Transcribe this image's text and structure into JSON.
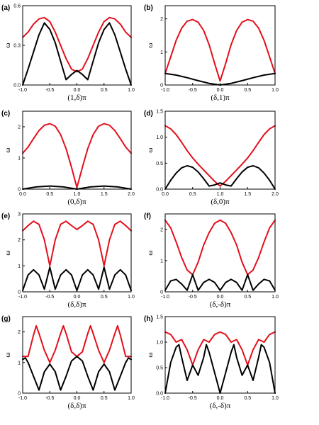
{
  "colors": {
    "upper": "#e3101b",
    "lower": "#000000",
    "axis": "#000000"
  },
  "chart_data": [
    {
      "panel": "(a)",
      "type": "line",
      "xlabel": "(1,δ)π",
      "ylabel": "ω",
      "xlim": [
        -1.0,
        1.0
      ],
      "ylim": [
        0.0,
        0.6
      ],
      "xticks": [
        "-1.0",
        "-0.5",
        "0.0",
        "0.5",
        "1.0"
      ],
      "xtick_values": [
        -1.0,
        -0.5,
        0.0,
        0.5,
        1.0
      ],
      "yticks": [
        "0.0",
        "0.3",
        "0.6"
      ],
      "ytick_values": [
        0.0,
        0.3,
        0.6
      ],
      "series": [
        {
          "color": "#e3101b",
          "x": [
            -1.0,
            -0.9,
            -0.8,
            -0.7,
            -0.6,
            -0.5,
            -0.4,
            -0.3,
            -0.2,
            -0.1,
            0.0,
            0.1,
            0.2,
            0.3,
            0.4,
            0.5,
            0.6,
            0.7,
            0.8,
            0.9,
            1.0
          ],
          "y": [
            0.36,
            0.4,
            0.46,
            0.5,
            0.51,
            0.48,
            0.4,
            0.3,
            0.2,
            0.12,
            0.1,
            0.12,
            0.2,
            0.3,
            0.4,
            0.48,
            0.51,
            0.5,
            0.46,
            0.4,
            0.36
          ]
        },
        {
          "color": "#000000",
          "x": [
            -1.0,
            -0.9,
            -0.8,
            -0.7,
            -0.6,
            -0.5,
            -0.4,
            -0.3,
            -0.2,
            -0.1,
            0.0,
            0.1,
            0.2,
            0.3,
            0.4,
            0.5,
            0.6,
            0.7,
            0.8,
            0.9,
            1.0
          ],
          "y": [
            0.0,
            0.12,
            0.25,
            0.38,
            0.47,
            0.42,
            0.32,
            0.18,
            0.04,
            0.08,
            0.11,
            0.08,
            0.04,
            0.18,
            0.32,
            0.42,
            0.47,
            0.38,
            0.25,
            0.12,
            0.0
          ]
        }
      ]
    },
    {
      "panel": "(b)",
      "type": "line",
      "xlabel": "(δ,1)π",
      "ylabel": "ω",
      "xlim": [
        -1.0,
        1.0
      ],
      "ylim": [
        0,
        2.4
      ],
      "xticks": [
        "-1.0",
        "-0.5",
        "0.0",
        "0.5",
        "1.0"
      ],
      "xtick_values": [
        -1.0,
        -0.5,
        0.0,
        0.5,
        1.0
      ],
      "yticks": [
        "0",
        "1",
        "2"
      ],
      "ytick_values": [
        0,
        1,
        2
      ],
      "series": [
        {
          "color": "#e3101b",
          "x": [
            -1.0,
            -0.9,
            -0.8,
            -0.7,
            -0.6,
            -0.5,
            -0.4,
            -0.3,
            -0.2,
            -0.1,
            0.0,
            0.1,
            0.2,
            0.3,
            0.4,
            0.5,
            0.6,
            0.7,
            0.8,
            0.9,
            1.0
          ],
          "y": [
            0.35,
            0.85,
            1.35,
            1.72,
            1.93,
            1.98,
            1.9,
            1.65,
            1.22,
            0.65,
            0.12,
            0.65,
            1.22,
            1.65,
            1.9,
            1.98,
            1.93,
            1.72,
            1.35,
            0.85,
            0.35
          ]
        },
        {
          "color": "#000000",
          "x": [
            -1.0,
            -0.8,
            -0.6,
            -0.4,
            -0.2,
            0.0,
            0.2,
            0.4,
            0.6,
            0.8,
            1.0
          ],
          "y": [
            0.35,
            0.3,
            0.22,
            0.13,
            0.05,
            0.0,
            0.05,
            0.13,
            0.22,
            0.3,
            0.35
          ]
        }
      ]
    },
    {
      "panel": "(c)",
      "type": "line",
      "xlabel": "(0,δ)π",
      "ylabel": "ω",
      "xlim": [
        0.0,
        2.0
      ],
      "ylim": [
        0,
        2.5
      ],
      "xticks": [
        "0.0",
        "0.5",
        "1.0",
        "1.5",
        "2.0"
      ],
      "xtick_values": [
        0.0,
        0.5,
        1.0,
        1.5,
        2.0
      ],
      "yticks": [
        "0",
        "1",
        "2"
      ],
      "ytick_values": [
        0,
        1,
        2
      ],
      "series": [
        {
          "color": "#e3101b",
          "x": [
            0.0,
            0.1,
            0.2,
            0.3,
            0.4,
            0.5,
            0.6,
            0.7,
            0.8,
            0.9,
            1.0,
            1.1,
            1.2,
            1.3,
            1.4,
            1.5,
            1.6,
            1.7,
            1.8,
            1.9,
            2.0
          ],
          "y": [
            1.15,
            1.35,
            1.62,
            1.88,
            2.05,
            2.1,
            2.02,
            1.75,
            1.3,
            0.7,
            0.05,
            0.7,
            1.3,
            1.75,
            2.02,
            2.1,
            2.05,
            1.88,
            1.62,
            1.35,
            1.15
          ]
        },
        {
          "color": "#000000",
          "x": [
            0.0,
            0.25,
            0.5,
            0.75,
            1.0,
            1.25,
            1.5,
            1.75,
            2.0
          ],
          "y": [
            0.0,
            0.07,
            0.1,
            0.07,
            0.0,
            0.07,
            0.1,
            0.07,
            0.0
          ]
        }
      ]
    },
    {
      "panel": "(d)",
      "type": "line",
      "xlabel": "(δ,0)π",
      "ylabel": "ω",
      "xlim": [
        0.0,
        2.0
      ],
      "ylim": [
        0.0,
        1.5
      ],
      "xticks": [
        "0.0",
        "0.5",
        "1.0",
        "1.5",
        "2.0"
      ],
      "xtick_values": [
        0.0,
        0.5,
        1.0,
        1.5,
        2.0
      ],
      "yticks": [
        "0.0",
        "0.5",
        "1.0",
        "1.5"
      ],
      "ytick_values": [
        0.0,
        0.5,
        1.0,
        1.5
      ],
      "series": [
        {
          "color": "#e3101b",
          "x": [
            0.0,
            0.1,
            0.2,
            0.3,
            0.4,
            0.5,
            0.6,
            0.7,
            0.8,
            0.9,
            1.0,
            1.1,
            1.2,
            1.3,
            1.4,
            1.5,
            1.6,
            1.7,
            1.8,
            1.9,
            2.0
          ],
          "y": [
            1.22,
            1.16,
            1.05,
            0.9,
            0.74,
            0.6,
            0.48,
            0.37,
            0.26,
            0.15,
            0.06,
            0.15,
            0.26,
            0.37,
            0.48,
            0.6,
            0.74,
            0.9,
            1.05,
            1.16,
            1.22
          ]
        },
        {
          "color": "#000000",
          "x": [
            0.0,
            0.1,
            0.2,
            0.3,
            0.4,
            0.5,
            0.6,
            0.7,
            0.8,
            0.9,
            1.0,
            1.1,
            1.2,
            1.3,
            1.4,
            1.5,
            1.6,
            1.7,
            1.8,
            1.9,
            2.0
          ],
          "y": [
            0.0,
            0.17,
            0.31,
            0.41,
            0.45,
            0.42,
            0.33,
            0.2,
            0.06,
            0.08,
            0.12,
            0.08,
            0.06,
            0.2,
            0.33,
            0.42,
            0.45,
            0.41,
            0.31,
            0.17,
            0.0
          ]
        }
      ]
    },
    {
      "panel": "(e)",
      "type": "line",
      "xlabel": "(δ,δ)π",
      "ylabel": "ω",
      "xlim": [
        -1.0,
        1.0
      ],
      "ylim": [
        0,
        3
      ],
      "xticks": [
        "-1.0",
        "-0.5",
        "0.0",
        "0.5",
        "1.0"
      ],
      "xtick_values": [
        -1.0,
        -0.5,
        0.0,
        0.5,
        1.0
      ],
      "yticks": [
        "0",
        "1",
        "2",
        "3"
      ],
      "ytick_values": [
        0,
        1,
        2,
        3
      ],
      "series": [
        {
          "color": "#e3101b",
          "x": [
            -1.0,
            -0.9,
            -0.8,
            -0.7,
            -0.6,
            -0.5,
            -0.4,
            -0.3,
            -0.2,
            -0.1,
            0.0,
            0.1,
            0.2,
            0.3,
            0.4,
            0.5,
            0.6,
            0.7,
            0.8,
            0.9,
            1.0
          ],
          "y": [
            2.35,
            2.55,
            2.72,
            2.6,
            2.0,
            1.0,
            2.0,
            2.6,
            2.72,
            2.55,
            2.4,
            2.55,
            2.72,
            2.6,
            2.0,
            1.0,
            2.0,
            2.6,
            2.72,
            2.55,
            2.35
          ]
        },
        {
          "color": "#000000",
          "x": [
            -1.0,
            -0.9,
            -0.8,
            -0.7,
            -0.6,
            -0.5,
            -0.4,
            -0.3,
            -0.2,
            -0.1,
            0.0,
            0.1,
            0.2,
            0.3,
            0.4,
            0.5,
            0.6,
            0.7,
            0.8,
            0.9,
            1.0
          ],
          "y": [
            0.05,
            0.65,
            0.85,
            0.65,
            0.1,
            0.95,
            0.1,
            0.65,
            0.85,
            0.65,
            0.05,
            0.65,
            0.85,
            0.65,
            0.1,
            0.95,
            0.1,
            0.65,
            0.85,
            0.65,
            0.05
          ]
        }
      ]
    },
    {
      "panel": "(f)",
      "type": "line",
      "xlabel": "(δ,-δ)π",
      "ylabel": "ω",
      "xlim": [
        -1.0,
        1.0
      ],
      "ylim": [
        0,
        2.5
      ],
      "xticks": [
        "-1.0",
        "-0.5",
        "0.0",
        "0.5",
        "1.0"
      ],
      "xtick_values": [
        -1.0,
        -0.5,
        0.0,
        0.5,
        1.0
      ],
      "yticks": [
        "0",
        "1",
        "2"
      ],
      "ytick_values": [
        0,
        1,
        2
      ],
      "series": [
        {
          "color": "#e3101b",
          "x": [
            -1.0,
            -0.9,
            -0.8,
            -0.7,
            -0.6,
            -0.5,
            -0.4,
            -0.3,
            -0.2,
            -0.1,
            0.0,
            0.1,
            0.2,
            0.3,
            0.4,
            0.5,
            0.6,
            0.7,
            0.8,
            0.9,
            1.0
          ],
          "y": [
            2.3,
            2.05,
            1.6,
            1.1,
            0.7,
            0.55,
            0.95,
            1.5,
            1.9,
            2.2,
            2.3,
            2.2,
            1.9,
            1.5,
            0.95,
            0.55,
            0.7,
            1.1,
            1.6,
            2.05,
            2.3
          ]
        },
        {
          "color": "#000000",
          "x": [
            -1.0,
            -0.9,
            -0.8,
            -0.7,
            -0.6,
            -0.5,
            -0.4,
            -0.3,
            -0.2,
            -0.1,
            0.0,
            0.1,
            0.2,
            0.3,
            0.4,
            0.5,
            0.6,
            0.7,
            0.8,
            0.9,
            1.0
          ],
          "y": [
            0.05,
            0.35,
            0.4,
            0.25,
            0.05,
            0.55,
            0.05,
            0.3,
            0.4,
            0.3,
            0.05,
            0.3,
            0.4,
            0.3,
            0.05,
            0.55,
            0.05,
            0.25,
            0.4,
            0.35,
            0.05
          ]
        }
      ]
    },
    {
      "panel": "(g)",
      "type": "line",
      "xlabel": "(δ,δ)π",
      "ylabel": "ω",
      "xlim": [
        -1.0,
        1.0
      ],
      "ylim": [
        0,
        2.5
      ],
      "xticks": [
        "-1.0",
        "-0.5",
        "0.0",
        "0.5",
        "1.0"
      ],
      "xtick_values": [
        -1.0,
        -0.5,
        0.0,
        0.5,
        1.0
      ],
      "yticks": [
        "0",
        "1",
        "2"
      ],
      "ytick_values": [
        0,
        1,
        2
      ],
      "series": [
        {
          "color": "#e3101b",
          "x": [
            -1.0,
            -0.9,
            -0.8,
            -0.75,
            -0.7,
            -0.6,
            -0.5,
            -0.4,
            -0.3,
            -0.25,
            -0.2,
            -0.1,
            0.0,
            0.1,
            0.2,
            0.25,
            0.3,
            0.4,
            0.5,
            0.6,
            0.7,
            0.75,
            0.8,
            0.9,
            1.0
          ],
          "y": [
            1.2,
            1.2,
            1.9,
            2.2,
            1.95,
            1.4,
            1.0,
            1.4,
            1.95,
            2.2,
            1.95,
            1.35,
            1.2,
            1.35,
            1.95,
            2.2,
            1.95,
            1.4,
            1.0,
            1.4,
            1.95,
            2.2,
            1.9,
            1.2,
            1.2
          ]
        },
        {
          "color": "#000000",
          "x": [
            -1.0,
            -0.95,
            -0.9,
            -0.8,
            -0.7,
            -0.6,
            -0.5,
            -0.4,
            -0.3,
            -0.2,
            -0.1,
            0.0,
            0.1,
            0.2,
            0.3,
            0.4,
            0.5,
            0.6,
            0.7,
            0.8,
            0.9,
            0.95,
            1.0
          ],
          "y": [
            1.1,
            1.15,
            1.0,
            0.55,
            0.1,
            0.7,
            0.95,
            0.7,
            0.1,
            0.55,
            1.05,
            1.2,
            1.05,
            0.55,
            0.1,
            0.7,
            0.95,
            0.7,
            0.1,
            0.55,
            1.0,
            1.15,
            1.1
          ]
        }
      ]
    },
    {
      "panel": "(h)",
      "type": "line",
      "xlabel": "(δ,-δ)π",
      "ylabel": "ω",
      "xlim": [
        -1.0,
        1.0
      ],
      "ylim": [
        0.0,
        1.5
      ],
      "xticks": [
        "-1.0",
        "-0.5",
        "0.0",
        "0.5",
        "1.0"
      ],
      "xtick_values": [
        -1.0,
        -0.5,
        0.0,
        0.5,
        1.0
      ],
      "yticks": [
        "0.0",
        "0.5",
        "1.0",
        "1.5"
      ],
      "ytick_values": [
        0.0,
        0.5,
        1.0,
        1.5
      ],
      "series": [
        {
          "color": "#e3101b",
          "x": [
            -1.0,
            -0.9,
            -0.8,
            -0.7,
            -0.6,
            -0.5,
            -0.4,
            -0.3,
            -0.2,
            -0.1,
            0.0,
            0.1,
            0.2,
            0.3,
            0.4,
            0.5,
            0.6,
            0.7,
            0.8,
            0.9,
            1.0
          ],
          "y": [
            1.2,
            1.15,
            1.0,
            1.05,
            0.85,
            0.55,
            0.85,
            1.05,
            1.0,
            1.15,
            1.2,
            1.15,
            1.0,
            1.05,
            0.85,
            0.55,
            0.85,
            1.05,
            1.0,
            1.15,
            1.2
          ]
        },
        {
          "color": "#000000",
          "x": [
            -1.0,
            -0.9,
            -0.8,
            -0.75,
            -0.7,
            -0.6,
            -0.5,
            -0.4,
            -0.3,
            -0.25,
            -0.2,
            -0.1,
            0.0,
            0.1,
            0.2,
            0.25,
            0.3,
            0.4,
            0.5,
            0.6,
            0.7,
            0.75,
            0.8,
            0.9,
            1.0
          ],
          "y": [
            0.0,
            0.6,
            0.9,
            0.95,
            0.7,
            0.25,
            0.55,
            0.35,
            0.7,
            0.95,
            0.8,
            0.4,
            0.0,
            0.4,
            0.8,
            0.95,
            0.7,
            0.35,
            0.55,
            0.25,
            0.7,
            0.95,
            0.9,
            0.6,
            0.0
          ]
        }
      ]
    }
  ]
}
